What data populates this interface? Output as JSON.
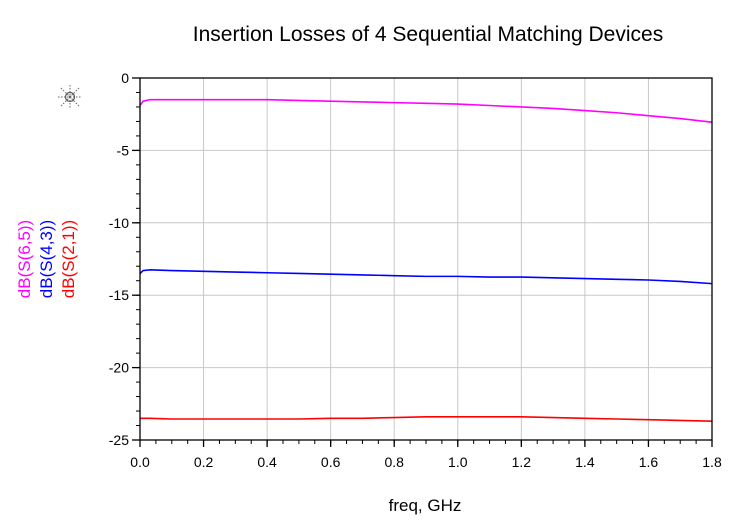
{
  "chart_data": {
    "type": "line",
    "title": "Insertion Losses of 4 Sequential Matching Devices",
    "xlabel": "freq, GHz",
    "xlim": [
      0.0,
      1.8
    ],
    "ylim": [
      -25,
      0
    ],
    "x_ticks": [
      0.0,
      0.2,
      0.4,
      0.6,
      0.8,
      1.0,
      1.2,
      1.4,
      1.6,
      1.8
    ],
    "x_tick_labels": [
      "0.0",
      "0.2",
      "0.4",
      "0.6",
      "0.8",
      "1.0",
      "1.2",
      "1.4",
      "1.6",
      "1.8"
    ],
    "y_ticks": [
      0,
      -5,
      -10,
      -15,
      -20,
      -25
    ],
    "y_tick_labels": [
      "0",
      "-5",
      "-10",
      "-15",
      "-20",
      "-25"
    ],
    "grid": true,
    "marker_icon": "crosshair-marker-icon",
    "series": [
      {
        "name": "dB(S(6,5))",
        "color": "#ff00ff",
        "x": [
          0.0,
          0.01,
          0.03,
          0.1,
          0.2,
          0.3,
          0.4,
          0.5,
          0.6,
          0.7,
          0.8,
          0.9,
          1.0,
          1.1,
          1.2,
          1.3,
          1.4,
          1.5,
          1.6,
          1.7,
          1.8
        ],
        "y": [
          -1.9,
          -1.6,
          -1.5,
          -1.5,
          -1.5,
          -1.5,
          -1.5,
          -1.55,
          -1.6,
          -1.65,
          -1.7,
          -1.75,
          -1.8,
          -1.9,
          -2.0,
          -2.1,
          -2.25,
          -2.4,
          -2.6,
          -2.8,
          -3.05
        ]
      },
      {
        "name": "dB(S(4,3))",
        "color": "#0000ff",
        "x": [
          0.0,
          0.01,
          0.03,
          0.1,
          0.2,
          0.3,
          0.4,
          0.5,
          0.6,
          0.7,
          0.8,
          0.9,
          1.0,
          1.1,
          1.2,
          1.3,
          1.4,
          1.5,
          1.6,
          1.7,
          1.8
        ],
        "y": [
          -13.5,
          -13.3,
          -13.25,
          -13.3,
          -13.35,
          -13.4,
          -13.45,
          -13.5,
          -13.55,
          -13.6,
          -13.65,
          -13.7,
          -13.7,
          -13.75,
          -13.75,
          -13.8,
          -13.85,
          -13.9,
          -13.95,
          -14.05,
          -14.2
        ]
      },
      {
        "name": "dB(S(2,1))",
        "color": "#ff0000",
        "x": [
          0.0,
          0.01,
          0.03,
          0.1,
          0.2,
          0.3,
          0.4,
          0.5,
          0.6,
          0.7,
          0.8,
          0.9,
          1.0,
          1.1,
          1.2,
          1.3,
          1.4,
          1.5,
          1.6,
          1.7,
          1.8
        ],
        "y": [
          -23.5,
          -23.5,
          -23.5,
          -23.55,
          -23.55,
          -23.55,
          -23.55,
          -23.55,
          -23.5,
          -23.5,
          -23.45,
          -23.4,
          -23.4,
          -23.4,
          -23.4,
          -23.45,
          -23.5,
          -23.55,
          -23.6,
          -23.65,
          -23.7
        ]
      }
    ]
  }
}
